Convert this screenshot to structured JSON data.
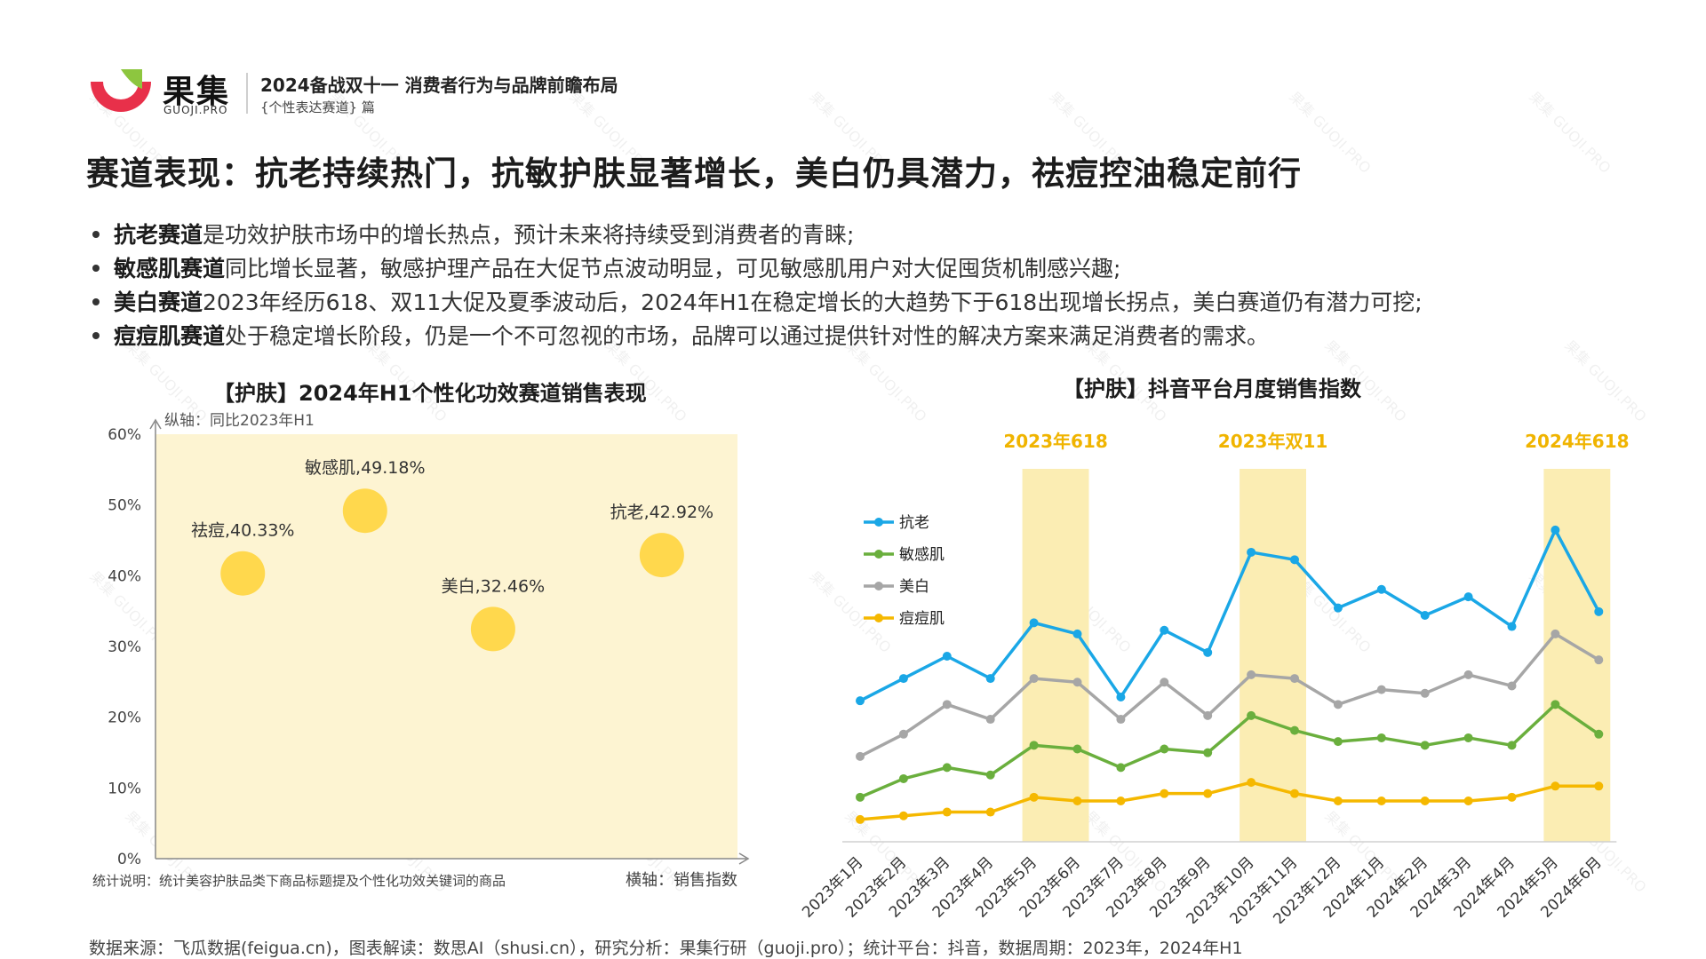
{
  "header": {
    "brand_name": "果集",
    "brand_sub": "GUOJI.PRO",
    "report_title": "2024备战双十一 消费者行为与品牌前瞻布局",
    "report_subtitle": "{个性表达赛道} 篇",
    "watermark": "果集 GUOJI.PRO"
  },
  "title": "赛道表现：抗老持续热门，抗敏护肤显著增长，美白仍具潜力，祛痘控油稳定前行",
  "bullets": [
    {
      "bold": "抗老赛道",
      "text": "是功效护肤市场中的增长热点，预计未来将持续受到消费者的青睐;"
    },
    {
      "bold": "敏感肌赛道",
      "text": "同比增长显著，敏感护理产品在大促节点波动明显，可见敏感肌用户对大促囤货机制感兴趣;"
    },
    {
      "bold": "美白赛道",
      "text": "2023年经历618、双11大促及夏季波动后，2024年H1在稳定增长的大趋势下于618出现增长拐点，美白赛道仍有潜力可挖;"
    },
    {
      "bold": "痘痘肌赛道",
      "text": "处于稳定增长阶段，仍是一个不可忽视的市场，品牌可以通过提供针对性的解决方案来满足消费者的需求。"
    }
  ],
  "left_chart": {
    "title": "【护肤】2024年H1个性化功效赛道销售表现",
    "ylabel": "纵轴：同比2023年H1",
    "xlabel": "横轴：销售指数",
    "note": "统计说明：统计美容护肤品类下商品标题提及个性化功效关键词的商品"
  },
  "right_chart": {
    "title": "【护肤】抖音平台月度销售指数",
    "highlights": [
      "2023年618",
      "2023年双11",
      "2024年618"
    ]
  },
  "footer": "数据来源：飞瓜数据(feigua.cn)，图表解读：数思AI（shusi.cn），研究分析：果集行研（guoji.pro）；统计平台：抖音，数据周期：2023年，2024年H1",
  "colors": {
    "bubble": "#ffd84d",
    "bubble_bg": "#fdf4d2",
    "highlight_band": "#fbedb3",
    "highlight_text": "#f0b400",
    "logo_green": "#8dc63f",
    "logo_red": "#e8304a"
  },
  "chart_data": [
    {
      "type": "scatter",
      "title": "【护肤】2024年H1个性化功效赛道销售表现",
      "xlabel": "横轴：销售指数",
      "ylabel": "纵轴：同比2023年H1",
      "y_ticks": [
        "0%",
        "10%",
        "20%",
        "30%",
        "40%",
        "50%",
        "60%"
      ],
      "ylim": [
        0,
        60
      ],
      "xlim": [
        0,
        100
      ],
      "points": [
        {
          "label": "祛痘,40.33%",
          "x": 15,
          "y": 40.33
        },
        {
          "label": "敏感肌,49.18%",
          "x": 36,
          "y": 49.18
        },
        {
          "label": "美白,32.46%",
          "x": 58,
          "y": 32.46
        },
        {
          "label": "抗老,42.92%",
          "x": 87,
          "y": 42.92
        }
      ]
    },
    {
      "type": "line",
      "title": "【护肤】抖音平台月度销售指数",
      "categories": [
        "2023年1月",
        "2023年2月",
        "2023年3月",
        "2023年4月",
        "2023年5月",
        "2023年6月",
        "2023年7月",
        "2023年8月",
        "2023年9月",
        "2023年10月",
        "2023年11月",
        "2023年12月",
        "2024年1月",
        "2024年2月",
        "2024年3月",
        "2024年4月",
        "2024年5月",
        "2024年6月"
      ],
      "ylim": [
        0,
        100
      ],
      "highlight_ranges": [
        {
          "label": "2023年618",
          "from": "2023年5月",
          "to": "2023年6月"
        },
        {
          "label": "2023年双11",
          "from": "2023年10月",
          "to": "2023年11月"
        },
        {
          "label": "2024年618",
          "from": "2024年5月",
          "to": "2024年6月"
        }
      ],
      "legend": "left",
      "series": [
        {
          "name": "抗老",
          "color": "#1aa7e6",
          "values": [
            38,
            44,
            50,
            44,
            59,
            56,
            39,
            57,
            51,
            78,
            76,
            63,
            68,
            61,
            66,
            58,
            84,
            62
          ]
        },
        {
          "name": "敏感肌",
          "color": "#6aaf3d",
          "values": [
            12,
            17,
            20,
            18,
            26,
            25,
            20,
            25,
            24,
            34,
            30,
            27,
            28,
            26,
            28,
            26,
            37,
            29
          ]
        },
        {
          "name": "美白",
          "color": "#a6a6a6",
          "values": [
            23,
            29,
            37,
            33,
            44,
            43,
            33,
            43,
            34,
            45,
            44,
            37,
            41,
            40,
            45,
            42,
            56,
            49
          ]
        },
        {
          "name": "痘痘肌",
          "color": "#f5b800",
          "values": [
            6,
            7,
            8,
            8,
            12,
            11,
            11,
            13,
            13,
            16,
            13,
            11,
            11,
            11,
            11,
            12,
            15,
            15
          ]
        }
      ]
    }
  ]
}
